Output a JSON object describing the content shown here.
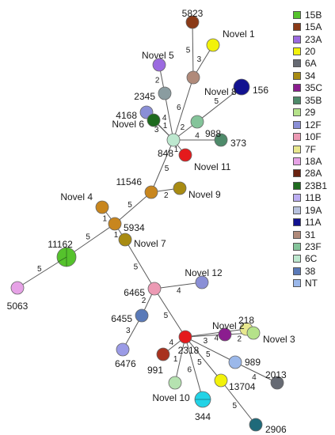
{
  "legend": [
    {
      "label": "15B",
      "color": "#55c22c"
    },
    {
      "label": "15A",
      "color": "#8a3a17"
    },
    {
      "label": "23A",
      "color": "#9b6ae0"
    },
    {
      "label": "20",
      "color": "#f2f20a"
    },
    {
      "label": "6A",
      "color": "#666a73"
    },
    {
      "label": "34",
      "color": "#a88b12"
    },
    {
      "label": "35C",
      "color": "#8b1d8f"
    },
    {
      "label": "35B",
      "color": "#4e8a6a"
    },
    {
      "label": "29",
      "color": "#b5e28a"
    },
    {
      "label": "12F",
      "color": "#8a8fd6"
    },
    {
      "label": "10F",
      "color": "#ec9ab4"
    },
    {
      "label": "7F",
      "color": "#e8e88e"
    },
    {
      "label": "18A",
      "color": "#e6a2e6"
    },
    {
      "label": "28A",
      "color": "#6a2210"
    },
    {
      "label": "23B1",
      "color": "#1e6a1e"
    },
    {
      "label": "11B",
      "color": "#bcaef2"
    },
    {
      "label": "19A",
      "color": "#b8c2de"
    },
    {
      "label": "11A",
      "color": "#121290"
    },
    {
      "label": "31",
      "color": "#b08a7a"
    },
    {
      "label": "23F",
      "color": "#84c49a"
    },
    {
      "label": "6C",
      "color": "#bde8cf"
    },
    {
      "label": "38",
      "color": "#5a7ab8"
    },
    {
      "label": "NT",
      "color": "#9bb8ea"
    }
  ],
  "nodes": [
    {
      "id": "n5823",
      "label": "5823",
      "color": "#8a3a17"
    },
    {
      "id": "nnovel1",
      "label": "Novel 1",
      "color": "#f2f20a"
    },
    {
      "id": "nnovel5",
      "label": "Novel 5",
      "color": "#9b6ae0"
    },
    {
      "id": "nnovel8",
      "label": "Novel 8",
      "color": "#b08a7a"
    },
    {
      "id": "n156",
      "label": "156",
      "color": "#121290"
    },
    {
      "id": "n2345",
      "label": "2345",
      "color": "#8a9ca0"
    },
    {
      "id": "n4168",
      "label": "4168",
      "color": "#8a8fd6"
    },
    {
      "id": "n988",
      "label": "988",
      "color": "#84c49a"
    },
    {
      "id": "nhub848",
      "label": "",
      "color": "#bde8cf"
    },
    {
      "id": "nnovel6",
      "label": "Novel 6",
      "color": "#1e6a1e"
    },
    {
      "id": "n373",
      "label": "373",
      "color": "#4e8a6a"
    },
    {
      "id": "n848",
      "label": "848",
      "color": "#",
      "hidden": true
    },
    {
      "id": "nnovel11",
      "label": "Novel 11",
      "color": "#e41a1c"
    },
    {
      "id": "n11546",
      "label": "11546",
      "color": "#c8861e"
    },
    {
      "id": "nnovel9",
      "label": "Novel 9",
      "color": "#a88b12"
    },
    {
      "id": "nnovel4",
      "label": "Novel 4",
      "color": "#c8861e"
    },
    {
      "id": "n5934",
      "label": "5934",
      "color": "#c8861e"
    },
    {
      "id": "nnovel7",
      "label": "Novel 7",
      "color": "#a88b12"
    },
    {
      "id": "n11162",
      "label": "11162",
      "color": "#55c22c"
    },
    {
      "id": "n5063",
      "label": "5063",
      "color": "#e6a2e6"
    },
    {
      "id": "n6465",
      "label": "6465",
      "color": "#ec9ab4"
    },
    {
      "id": "nnovel12",
      "label": "Novel 12",
      "color": "#8a8fd6"
    },
    {
      "id": "n6455",
      "label": "6455",
      "color": "#5a7ab8"
    },
    {
      "id": "n218",
      "label": "218",
      "color": "#e8e88e"
    },
    {
      "id": "nnovel2",
      "label": "Novel 2",
      "color": "#8b1d8f"
    },
    {
      "id": "nnovel3",
      "label": "Novel 3",
      "color": "#b5e28a"
    },
    {
      "id": "n2318",
      "label": "2318",
      "color": "#e41a1c"
    },
    {
      "id": "n6476",
      "label": "6476",
      "color": "#9b9be6"
    },
    {
      "id": "n991",
      "label": "991",
      "color": "#a8321e"
    },
    {
      "id": "n989",
      "label": "989",
      "color": "#9bb8ea"
    },
    {
      "id": "n2013",
      "label": "2013",
      "color": "#666a73"
    },
    {
      "id": "n13704",
      "label": "13704",
      "color": "#f2f20a"
    },
    {
      "id": "nnovel10",
      "label": "Novel 10",
      "color": "#b5e2b0"
    },
    {
      "id": "n344",
      "label": "344",
      "color": "#22d3e6"
    },
    {
      "id": "n2906",
      "label": "2906",
      "color": "#1f6a7a"
    }
  ],
  "edges": [
    {
      "from": "n5823",
      "to": "nnovel8",
      "weight": "5"
    },
    {
      "from": "nnovel1",
      "to": "nnovel8",
      "weight": "3"
    },
    {
      "from": "nnovel5",
      "to": "n2345",
      "weight": "2"
    },
    {
      "from": "nnovel8",
      "to": "nhub848",
      "weight": "6"
    },
    {
      "from": "n156",
      "to": "n988",
      "weight": "5"
    },
    {
      "from": "n2345",
      "to": "nhub848",
      "weight": "4"
    },
    {
      "from": "n4168",
      "to": "nhub848",
      "weight": "3"
    },
    {
      "from": "n988",
      "to": "nhub848",
      "weight": "2"
    },
    {
      "from": "nnovel6",
      "to": "nhub848",
      "weight": "1"
    },
    {
      "from": "n373",
      "to": "nhub848",
      "weight": "4"
    },
    {
      "from": "nnovel11",
      "to": "nhub848",
      "weight": "1"
    },
    {
      "from": "n11546",
      "to": "nhub848",
      "weight": "5"
    },
    {
      "from": "n11546",
      "to": "nnovel9",
      "weight": "2"
    },
    {
      "from": "n11546",
      "to": "n5934",
      "weight": "5"
    },
    {
      "from": "nnovel4",
      "to": "n5934",
      "weight": "1"
    },
    {
      "from": "n5934",
      "to": "nnovel7",
      "weight": "1"
    },
    {
      "from": "n5934",
      "to": "n11162",
      "weight": "5"
    },
    {
      "from": "n11162",
      "to": "n5063",
      "weight": "5"
    },
    {
      "from": "nnovel7",
      "to": "n6465",
      "weight": "5"
    },
    {
      "from": "n6465",
      "to": "nnovel12",
      "weight": "4"
    },
    {
      "from": "n6465",
      "to": "n6455",
      "weight": "2"
    },
    {
      "from": "n6465",
      "to": "n2318",
      "weight": "5"
    },
    {
      "from": "n6455",
      "to": "n6476",
      "weight": "3"
    },
    {
      "from": "n2318",
      "to": "n218",
      "weight": "4"
    },
    {
      "from": "n2318",
      "to": "nnovel2",
      "weight": "3"
    },
    {
      "from": "nnovel2",
      "to": "nnovel3",
      "weight": "2"
    },
    {
      "from": "n2318",
      "to": "n991",
      "weight": "4"
    },
    {
      "from": "n2318",
      "to": "n989",
      "weight": "5"
    },
    {
      "from": "n989",
      "to": "n2013",
      "weight": "4"
    },
    {
      "from": "n2318",
      "to": "n13704",
      "weight": "5"
    },
    {
      "from": "n2318",
      "to": "nnovel10",
      "weight": "1"
    },
    {
      "from": "n2318",
      "to": "n344",
      "weight": "6"
    },
    {
      "from": "n13704",
      "to": "n2906",
      "weight": "5"
    }
  ]
}
